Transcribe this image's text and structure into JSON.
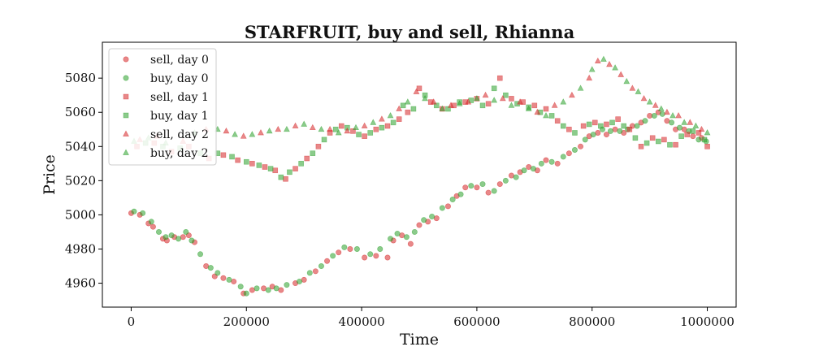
{
  "chart_data": {
    "type": "scatter",
    "title": "STARFRUIT, buy and sell, Rhianna",
    "xlabel": "Time",
    "ylabel": "Price",
    "xlim": [
      -50000,
      1050000
    ],
    "ylim": [
      4946,
      5101
    ],
    "xticks": [
      0,
      200000,
      400000,
      600000,
      800000,
      1000000
    ],
    "yticks": [
      4960,
      4980,
      5000,
      5020,
      5040,
      5060,
      5080
    ],
    "grid": false,
    "legend_position": "top-left",
    "colors": {
      "sell": "#d62728",
      "buy": "#2ca02c"
    },
    "series": [
      {
        "name": "sell, day 0",
        "side": "sell",
        "marker": "circle",
        "points": [
          [
            0,
            5001
          ],
          [
            15000,
            5000
          ],
          [
            30000,
            4995
          ],
          [
            38000,
            4993
          ],
          [
            55000,
            4986
          ],
          [
            62000,
            4985
          ],
          [
            75000,
            4987
          ],
          [
            90000,
            4987
          ],
          [
            100000,
            4988
          ],
          [
            110000,
            4984
          ],
          [
            130000,
            4970
          ],
          [
            145000,
            4964
          ],
          [
            160000,
            4963
          ],
          [
            178000,
            4961
          ],
          [
            195000,
            4954
          ],
          [
            210000,
            4956
          ],
          [
            230000,
            4957
          ],
          [
            245000,
            4958
          ],
          [
            260000,
            4956
          ],
          [
            285000,
            4960
          ],
          [
            300000,
            4962
          ],
          [
            320000,
            4967
          ],
          [
            340000,
            4973
          ],
          [
            360000,
            4978
          ],
          [
            380000,
            4980
          ],
          [
            405000,
            4975
          ],
          [
            425000,
            4976
          ],
          [
            445000,
            4975
          ],
          [
            455000,
            4985
          ],
          [
            470000,
            4988
          ],
          [
            485000,
            4983
          ],
          [
            500000,
            4994
          ],
          [
            515000,
            4996
          ],
          [
            530000,
            4998
          ],
          [
            550000,
            5005
          ],
          [
            565000,
            5011
          ],
          [
            580000,
            5016
          ],
          [
            600000,
            5016
          ],
          [
            620000,
            5013
          ],
          [
            640000,
            5018
          ],
          [
            660000,
            5023
          ],
          [
            675000,
            5025
          ],
          [
            690000,
            5028
          ],
          [
            705000,
            5026
          ],
          [
            720000,
            5032
          ],
          [
            740000,
            5030
          ],
          [
            760000,
            5036
          ],
          [
            780000,
            5040
          ],
          [
            795000,
            5046
          ],
          [
            810000,
            5048
          ],
          [
            825000,
            5047
          ],
          [
            840000,
            5050
          ],
          [
            855000,
            5048
          ],
          [
            870000,
            5052
          ],
          [
            885000,
            5054
          ],
          [
            900000,
            5058
          ],
          [
            915000,
            5060
          ],
          [
            930000,
            5055
          ],
          [
            945000,
            5050
          ],
          [
            960000,
            5050
          ],
          [
            975000,
            5046
          ],
          [
            990000,
            5045
          ]
        ]
      },
      {
        "name": "buy, day 0",
        "side": "buy",
        "marker": "circle",
        "points": [
          [
            5000,
            5002
          ],
          [
            20000,
            5001
          ],
          [
            35000,
            4996
          ],
          [
            48000,
            4990
          ],
          [
            60000,
            4987
          ],
          [
            70000,
            4988
          ],
          [
            82000,
            4986
          ],
          [
            95000,
            4990
          ],
          [
            105000,
            4985
          ],
          [
            120000,
            4977
          ],
          [
            138000,
            4969
          ],
          [
            150000,
            4966
          ],
          [
            170000,
            4962
          ],
          [
            190000,
            4958
          ],
          [
            200000,
            4954
          ],
          [
            218000,
            4957
          ],
          [
            238000,
            4956
          ],
          [
            252000,
            4957
          ],
          [
            270000,
            4959
          ],
          [
            292000,
            4961
          ],
          [
            310000,
            4966
          ],
          [
            330000,
            4970
          ],
          [
            350000,
            4976
          ],
          [
            370000,
            4981
          ],
          [
            392000,
            4980
          ],
          [
            415000,
            4977
          ],
          [
            432000,
            4980
          ],
          [
            450000,
            4986
          ],
          [
            462000,
            4989
          ],
          [
            478000,
            4987
          ],
          [
            492000,
            4990
          ],
          [
            508000,
            4997
          ],
          [
            522000,
            4999
          ],
          [
            540000,
            5004
          ],
          [
            558000,
            5009
          ],
          [
            572000,
            5012
          ],
          [
            590000,
            5017
          ],
          [
            610000,
            5018
          ],
          [
            630000,
            5014
          ],
          [
            650000,
            5020
          ],
          [
            668000,
            5022
          ],
          [
            682000,
            5026
          ],
          [
            698000,
            5027
          ],
          [
            712000,
            5030
          ],
          [
            730000,
            5031
          ],
          [
            750000,
            5034
          ],
          [
            770000,
            5038
          ],
          [
            788000,
            5044
          ],
          [
            802000,
            5047
          ],
          [
            818000,
            5050
          ],
          [
            832000,
            5049
          ],
          [
            848000,
            5049
          ],
          [
            862000,
            5050
          ],
          [
            878000,
            5052
          ],
          [
            892000,
            5055
          ],
          [
            908000,
            5058
          ],
          [
            922000,
            5059
          ],
          [
            938000,
            5054
          ],
          [
            952000,
            5051
          ],
          [
            968000,
            5049
          ],
          [
            985000,
            5044
          ],
          [
            998000,
            5043
          ]
        ]
      },
      {
        "name": "sell, day 1",
        "side": "sell",
        "marker": "square",
        "points": [
          [
            10000,
            5040
          ],
          [
            40000,
            5042
          ],
          [
            70000,
            5037
          ],
          [
            100000,
            5040
          ],
          [
            135000,
            5033
          ],
          [
            160000,
            5035
          ],
          [
            185000,
            5032
          ],
          [
            210000,
            5030
          ],
          [
            232000,
            5028
          ],
          [
            250000,
            5026
          ],
          [
            268000,
            5021
          ],
          [
            285000,
            5027
          ],
          [
            305000,
            5033
          ],
          [
            325000,
            5040
          ],
          [
            345000,
            5048
          ],
          [
            365000,
            5052
          ],
          [
            385000,
            5049
          ],
          [
            405000,
            5046
          ],
          [
            425000,
            5050
          ],
          [
            445000,
            5052
          ],
          [
            465000,
            5056
          ],
          [
            480000,
            5060
          ],
          [
            500000,
            5074
          ],
          [
            520000,
            5066
          ],
          [
            540000,
            5062
          ],
          [
            560000,
            5064
          ],
          [
            580000,
            5066
          ],
          [
            600000,
            5068
          ],
          [
            620000,
            5065
          ],
          [
            640000,
            5080
          ],
          [
            660000,
            5068
          ],
          [
            680000,
            5066
          ],
          [
            700000,
            5064
          ],
          [
            720000,
            5062
          ],
          [
            740000,
            5055
          ],
          [
            760000,
            5050
          ],
          [
            785000,
            5052
          ],
          [
            805000,
            5054
          ],
          [
            825000,
            5053
          ],
          [
            845000,
            5056
          ],
          [
            865000,
            5050
          ],
          [
            885000,
            5040
          ],
          [
            905000,
            5045
          ],
          [
            925000,
            5044
          ],
          [
            945000,
            5041
          ],
          [
            965000,
            5047
          ],
          [
            985000,
            5048
          ],
          [
            1000000,
            5040
          ]
        ]
      },
      {
        "name": "buy, day 1",
        "side": "buy",
        "marker": "square",
        "points": [
          [
            25000,
            5042
          ],
          [
            55000,
            5040
          ],
          [
            85000,
            5039
          ],
          [
            120000,
            5036
          ],
          [
            150000,
            5036
          ],
          [
            175000,
            5034
          ],
          [
            200000,
            5031
          ],
          [
            222000,
            5029
          ],
          [
            242000,
            5027
          ],
          [
            260000,
            5022
          ],
          [
            275000,
            5025
          ],
          [
            295000,
            5030
          ],
          [
            315000,
            5036
          ],
          [
            335000,
            5044
          ],
          [
            355000,
            5050
          ],
          [
            375000,
            5051
          ],
          [
            395000,
            5047
          ],
          [
            415000,
            5048
          ],
          [
            435000,
            5051
          ],
          [
            455000,
            5054
          ],
          [
            472000,
            5064
          ],
          [
            490000,
            5062
          ],
          [
            510000,
            5070
          ],
          [
            530000,
            5064
          ],
          [
            550000,
            5062
          ],
          [
            570000,
            5066
          ],
          [
            590000,
            5067
          ],
          [
            610000,
            5064
          ],
          [
            630000,
            5074
          ],
          [
            650000,
            5070
          ],
          [
            670000,
            5065
          ],
          [
            690000,
            5063
          ],
          [
            710000,
            5060
          ],
          [
            730000,
            5058
          ],
          [
            750000,
            5052
          ],
          [
            770000,
            5048
          ],
          [
            795000,
            5053
          ],
          [
            815000,
            5052
          ],
          [
            835000,
            5054
          ],
          [
            855000,
            5052
          ],
          [
            875000,
            5045
          ],
          [
            895000,
            5042
          ],
          [
            915000,
            5043
          ],
          [
            935000,
            5041
          ],
          [
            955000,
            5046
          ],
          [
            975000,
            5049
          ],
          [
            995000,
            5044
          ]
        ]
      },
      {
        "name": "sell, day 2",
        "side": "sell",
        "marker": "triangle",
        "points": [
          [
            15000,
            5044
          ],
          [
            45000,
            5046
          ],
          [
            90000,
            5043
          ],
          [
            130000,
            5050
          ],
          [
            165000,
            5049
          ],
          [
            195000,
            5046
          ],
          [
            225000,
            5048
          ],
          [
            255000,
            5050
          ],
          [
            285000,
            5052
          ],
          [
            315000,
            5051
          ],
          [
            345000,
            5050
          ],
          [
            375000,
            5049
          ],
          [
            405000,
            5052
          ],
          [
            435000,
            5056
          ],
          [
            465000,
            5062
          ],
          [
            495000,
            5072
          ],
          [
            525000,
            5066
          ],
          [
            555000,
            5064
          ],
          [
            585000,
            5066
          ],
          [
            615000,
            5070
          ],
          [
            645000,
            5068
          ],
          [
            675000,
            5066
          ],
          [
            705000,
            5060
          ],
          [
            735000,
            5064
          ],
          [
            765000,
            5070
          ],
          [
            795000,
            5080
          ],
          [
            810000,
            5090
          ],
          [
            830000,
            5088
          ],
          [
            850000,
            5082
          ],
          [
            870000,
            5074
          ],
          [
            890000,
            5068
          ],
          [
            910000,
            5064
          ],
          [
            930000,
            5060
          ],
          [
            950000,
            5058
          ],
          [
            970000,
            5054
          ],
          [
            990000,
            5050
          ]
        ]
      },
      {
        "name": "buy, day 2",
        "side": "buy",
        "marker": "triangle",
        "points": [
          [
            5000,
            5043
          ],
          [
            30000,
            5045
          ],
          [
            60000,
            5042
          ],
          [
            110000,
            5048
          ],
          [
            150000,
            5050
          ],
          [
            180000,
            5047
          ],
          [
            210000,
            5047
          ],
          [
            240000,
            5049
          ],
          [
            270000,
            5050
          ],
          [
            300000,
            5053
          ],
          [
            330000,
            5050
          ],
          [
            360000,
            5048
          ],
          [
            390000,
            5051
          ],
          [
            420000,
            5054
          ],
          [
            450000,
            5058
          ],
          [
            480000,
            5066
          ],
          [
            510000,
            5068
          ],
          [
            540000,
            5062
          ],
          [
            570000,
            5065
          ],
          [
            600000,
            5068
          ],
          [
            630000,
            5067
          ],
          [
            660000,
            5064
          ],
          [
            690000,
            5062
          ],
          [
            720000,
            5058
          ],
          [
            750000,
            5066
          ],
          [
            780000,
            5074
          ],
          [
            800000,
            5085
          ],
          [
            820000,
            5091
          ],
          [
            840000,
            5086
          ],
          [
            860000,
            5078
          ],
          [
            880000,
            5072
          ],
          [
            900000,
            5066
          ],
          [
            920000,
            5062
          ],
          [
            940000,
            5058
          ],
          [
            960000,
            5054
          ],
          [
            980000,
            5052
          ],
          [
            1000000,
            5048
          ]
        ]
      }
    ]
  }
}
